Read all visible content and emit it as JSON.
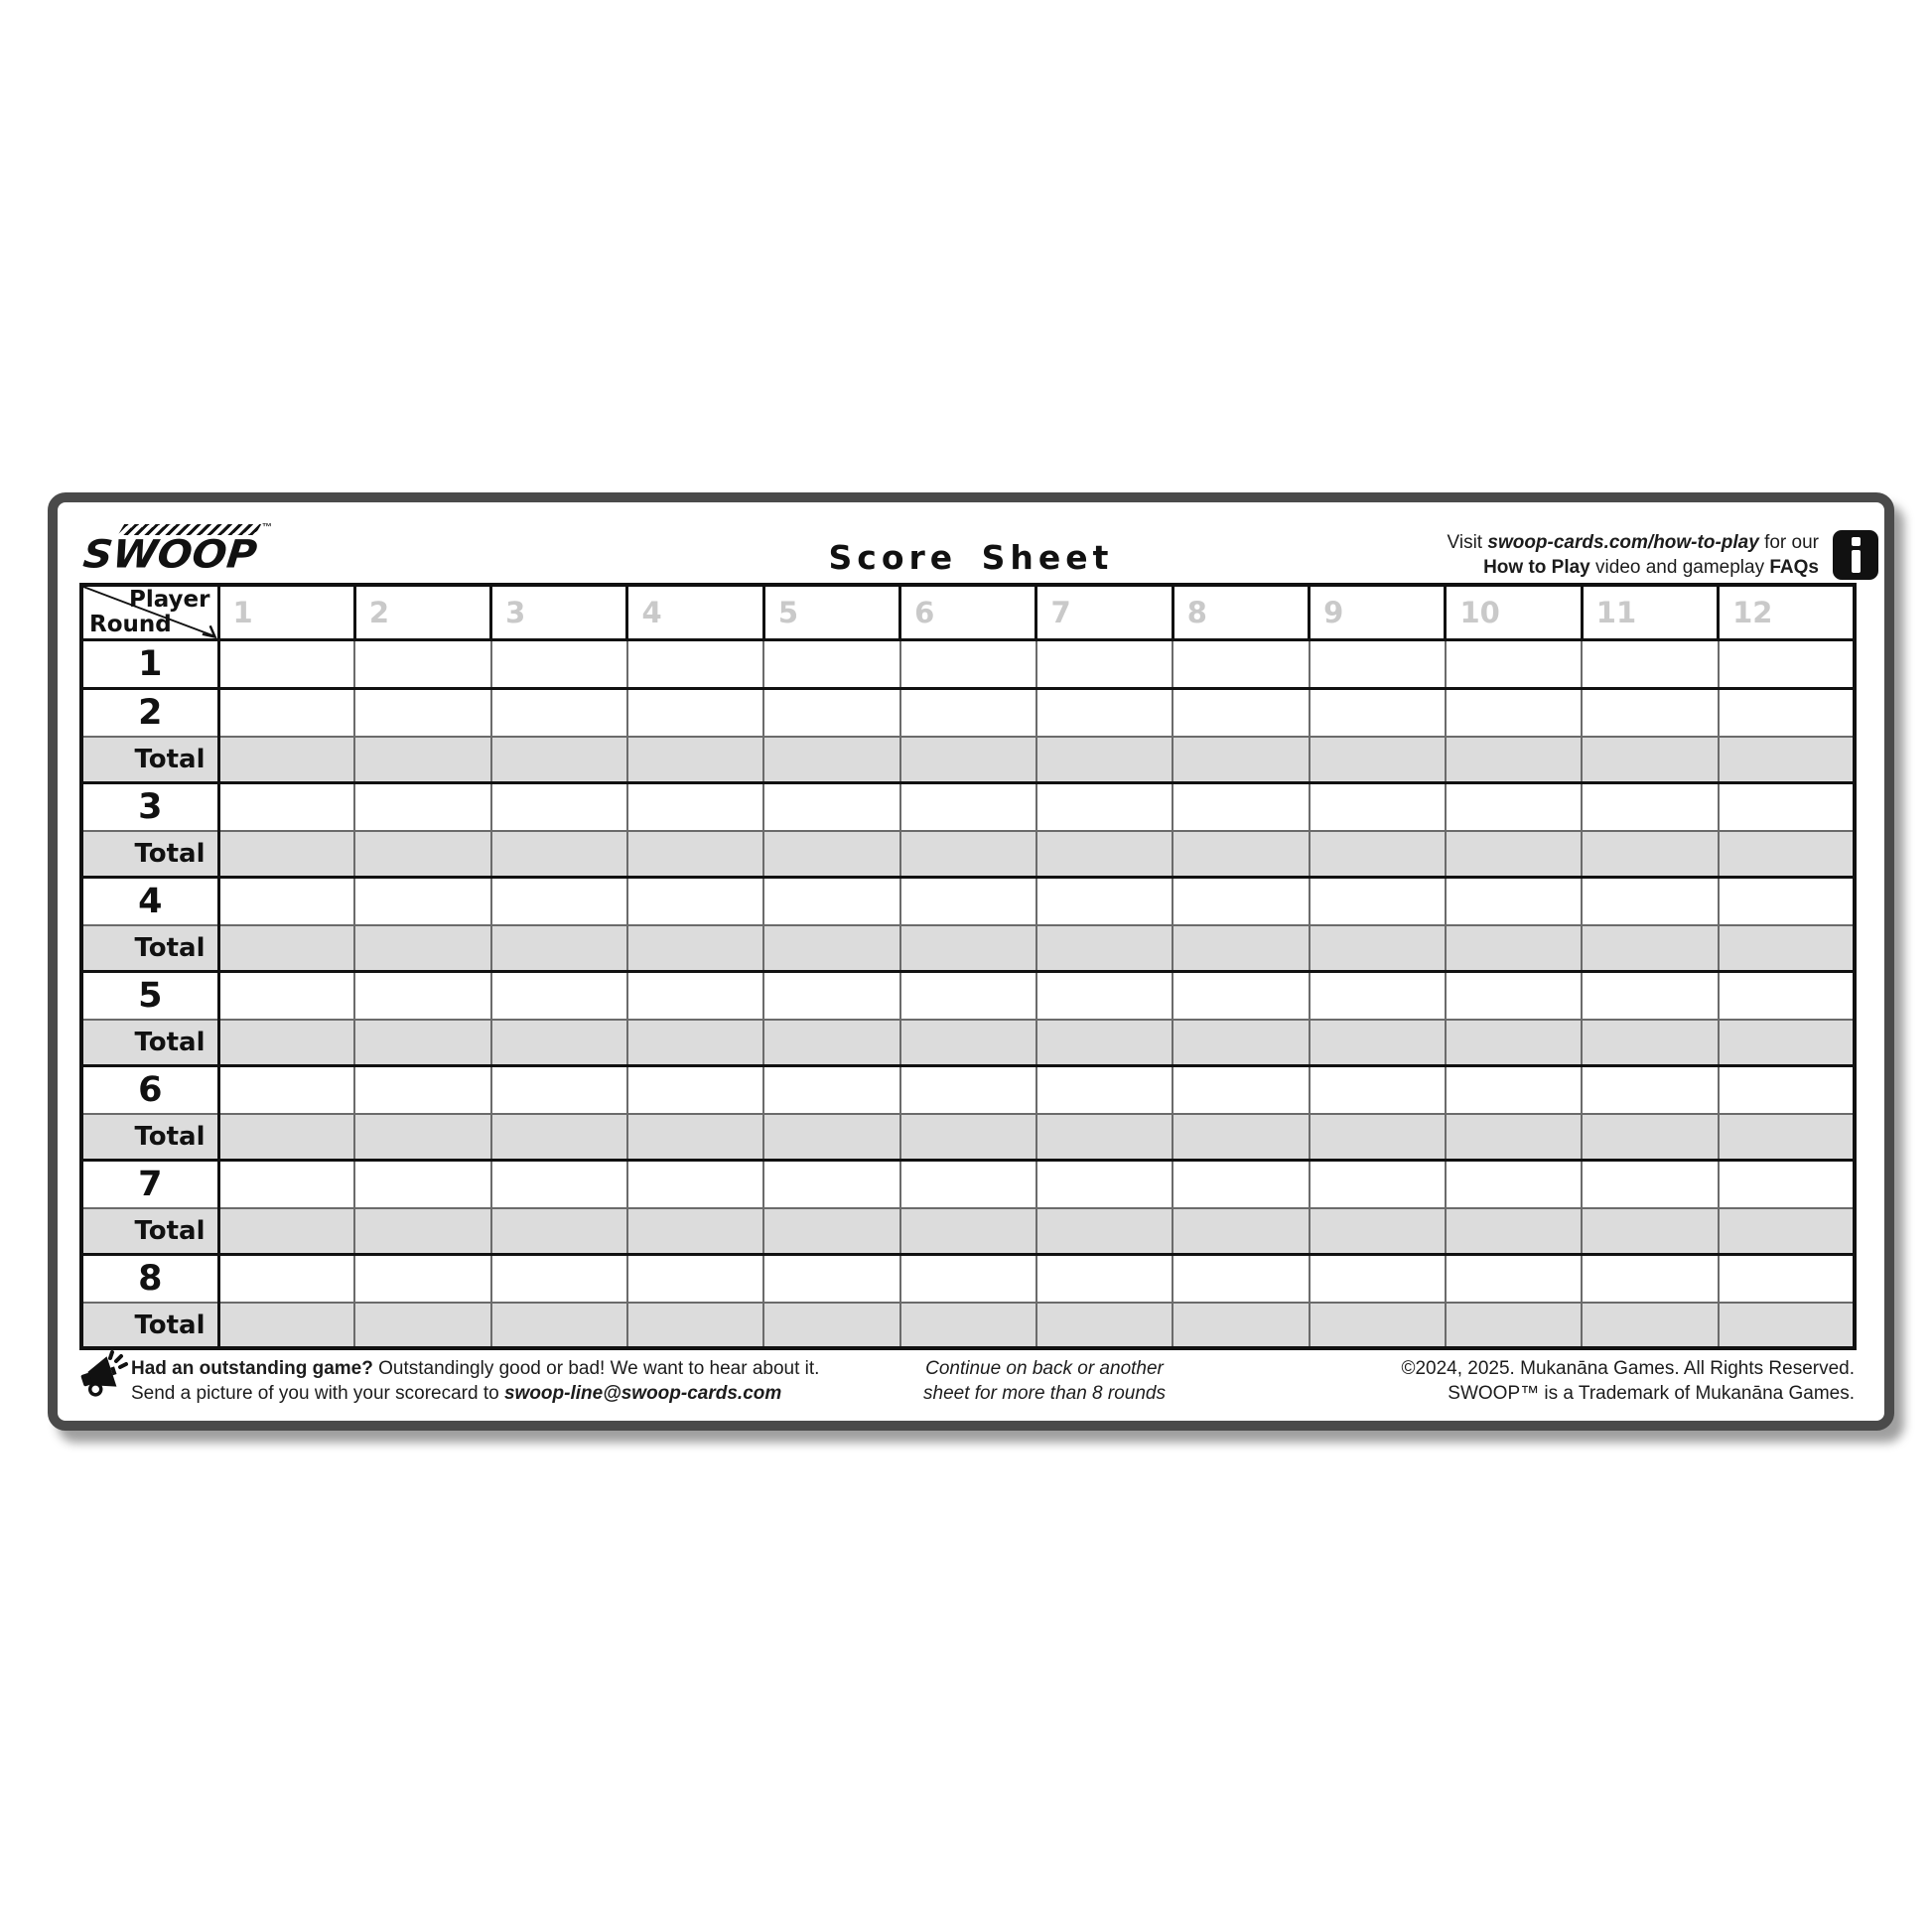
{
  "brand": {
    "name": "SWOOP",
    "trademark": "™"
  },
  "header": {
    "title": "Score Sheet",
    "visit": {
      "prefix": "Visit ",
      "link": "swoop-cards.com/how-to-play",
      "suffix": " for our"
    },
    "howto": {
      "bold1": "How to Play",
      "mid": " video and gameplay ",
      "bold2": "FAQs"
    }
  },
  "icons": {
    "info": "info-icon",
    "megaphone": "megaphone-icon"
  },
  "table": {
    "corner": {
      "player": "Player",
      "round": "Round"
    },
    "columns": [
      "1",
      "2",
      "3",
      "4",
      "5",
      "6",
      "7",
      "8",
      "9",
      "10",
      "11",
      "12"
    ],
    "rows": [
      {
        "label": "1",
        "type": "round"
      },
      {
        "label": "2",
        "type": "round"
      },
      {
        "label": "Total",
        "type": "total"
      },
      {
        "label": "3",
        "type": "round"
      },
      {
        "label": "Total",
        "type": "total"
      },
      {
        "label": "4",
        "type": "round"
      },
      {
        "label": "Total",
        "type": "total"
      },
      {
        "label": "5",
        "type": "round"
      },
      {
        "label": "Total",
        "type": "total"
      },
      {
        "label": "6",
        "type": "round"
      },
      {
        "label": "Total",
        "type": "total"
      },
      {
        "label": "7",
        "type": "round"
      },
      {
        "label": "Total",
        "type": "total"
      },
      {
        "label": "8",
        "type": "round"
      },
      {
        "label": "Total",
        "type": "total"
      }
    ]
  },
  "footer": {
    "left": {
      "bold": "Had an outstanding game?",
      "rest": "  Outstandingly good or bad!  We want to hear about it.",
      "line2_prefix": "Send a picture of you with your scorecard to ",
      "email": "swoop-line@swoop-cards.com"
    },
    "center": {
      "line1": "Continue on back or another",
      "line2": "sheet for more than 8 rounds"
    },
    "right": {
      "line1": "©2024, 2025. Mukanāna Games.  All Rights Reserved.",
      "line2": "SWOOP™ is a Trademark of Mukanāna Games."
    }
  },
  "colors": {
    "ink": "#111111",
    "card_border": "#4a4a4a",
    "total_row_fill": "#dcdcdc",
    "column_number": "#c9c9c9",
    "thin_line": "#6b6b6b"
  }
}
